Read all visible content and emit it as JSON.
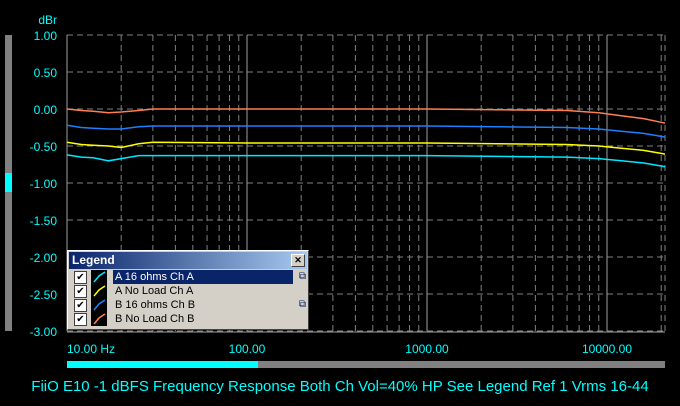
{
  "chart_data": {
    "type": "line",
    "title": "FiiO E10 -1 dBFS Frequency Response Both Ch Vol=40% HP See Legend Ref 1 Vrms 16-44",
    "ylabel": "dBr",
    "xlabel": "Hz",
    "xscale": "log",
    "xlim": [
      10,
      21000
    ],
    "ylim": [
      -3,
      1
    ],
    "grid": true,
    "yticks": [
      {
        "v": 1,
        "label": "1.00"
      },
      {
        "v": 0.5,
        "label": "0.50"
      },
      {
        "v": 0,
        "label": "0.00"
      },
      {
        "v": -0.5,
        "label": "-0.50"
      },
      {
        "v": -1,
        "label": "-1.00"
      },
      {
        "v": -1.5,
        "label": "-1.50"
      },
      {
        "v": -2,
        "label": "-2.00"
      },
      {
        "v": -2.5,
        "label": "-2.50"
      },
      {
        "v": -3,
        "label": "-3.00"
      }
    ],
    "xticks": [
      {
        "v": 10,
        "label": "10.00 Hz"
      },
      {
        "v": 100,
        "label": "100.00"
      },
      {
        "v": 1000,
        "label": "1000.00"
      },
      {
        "v": 10000,
        "label": "10000.00"
      }
    ],
    "series": [
      {
        "name": "A 16 ohms Ch A",
        "color": "#00e8ff",
        "x": [
          10,
          12,
          14,
          17,
          20,
          25,
          30,
          100,
          1000,
          6000,
          9000,
          12000,
          16000,
          20000
        ],
        "y": [
          -0.62,
          -0.65,
          -0.66,
          -0.7,
          -0.67,
          -0.63,
          -0.63,
          -0.63,
          -0.63,
          -0.65,
          -0.67,
          -0.7,
          -0.73,
          -0.77
        ]
      },
      {
        "name": "A No Load Ch A",
        "color": "#ffff00",
        "x": [
          10,
          12,
          14,
          17,
          20,
          25,
          30,
          100,
          1000,
          6000,
          9000,
          12000,
          16000,
          20000
        ],
        "y": [
          -0.45,
          -0.48,
          -0.49,
          -0.5,
          -0.52,
          -0.47,
          -0.45,
          -0.46,
          -0.46,
          -0.48,
          -0.5,
          -0.53,
          -0.56,
          -0.6
        ]
      },
      {
        "name": "B 16 ohms Ch B",
        "color": "#1e7fff",
        "x": [
          10,
          12,
          14,
          17,
          20,
          25,
          30,
          100,
          1000,
          6000,
          9000,
          12000,
          16000,
          20000
        ],
        "y": [
          -0.22,
          -0.25,
          -0.26,
          -0.27,
          -0.27,
          -0.24,
          -0.23,
          -0.23,
          -0.23,
          -0.25,
          -0.27,
          -0.3,
          -0.33,
          -0.37
        ]
      },
      {
        "name": "B No Load Ch B",
        "color": "#ff7f50",
        "x": [
          10,
          12,
          14,
          17,
          20,
          25,
          30,
          100,
          1000,
          6000,
          9000,
          12000,
          16000,
          20000
        ],
        "y": [
          0,
          -0.02,
          -0.03,
          -0.05,
          -0.04,
          -0.02,
          0,
          0,
          0,
          -0.02,
          -0.05,
          -0.09,
          -0.13,
          -0.18
        ]
      }
    ]
  },
  "legend": {
    "title": "Legend",
    "close": "✕",
    "items": [
      {
        "label": "A  16 ohms Ch A",
        "checked": "✔",
        "selected": true,
        "copy": true
      },
      {
        "label": "A  No Load Ch A",
        "checked": "✔",
        "selected": false,
        "copy": false
      },
      {
        "label": "B  16 ohms Ch B",
        "checked": "✔",
        "selected": false,
        "copy": true
      },
      {
        "label": "B  No Load Ch B",
        "checked": "✔",
        "selected": false,
        "copy": false
      }
    ]
  },
  "copy_icon": "⧉"
}
